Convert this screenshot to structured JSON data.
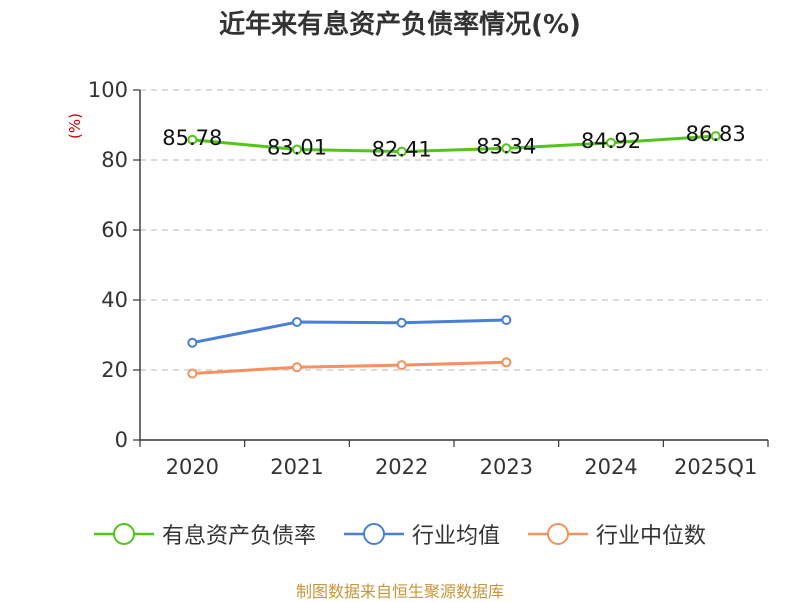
{
  "chart_data": {
    "type": "line",
    "title": "近年来有息资产负债率情况(%)",
    "ylabel": "(%)",
    "xlabel": "",
    "categories": [
      "2020",
      "2021",
      "2022",
      "2023",
      "2024",
      "2025Q1"
    ],
    "ylim": [
      0,
      100
    ],
    "yticks": [
      0,
      20,
      40,
      60,
      80,
      100
    ],
    "grid": true,
    "legend_position": "bottom",
    "series": [
      {
        "name": "有息资产负债率",
        "color": "#52c41a",
        "values": [
          85.78,
          83.01,
          82.41,
          83.34,
          84.92,
          86.83
        ],
        "labels": [
          "85.78",
          "83.01",
          "82.41",
          "83.34",
          "84.92",
          "86.83"
        ]
      },
      {
        "name": "行业均值",
        "color": "#4a7fd6",
        "values": [
          27.8,
          33.7,
          33.5,
          34.3,
          null,
          null
        ]
      },
      {
        "name": "行业中位数",
        "color": "#f4915e",
        "values": [
          19.0,
          20.8,
          21.4,
          22.2,
          null,
          null
        ]
      }
    ]
  },
  "source_note": "制图数据来自恒生聚源数据库"
}
